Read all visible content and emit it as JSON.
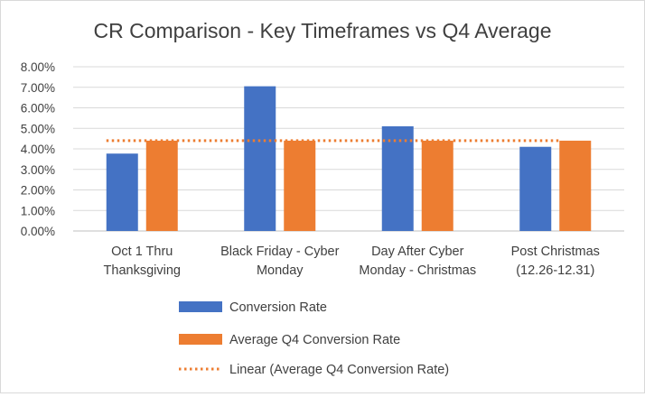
{
  "chart_data": {
    "type": "bar",
    "title": "CR Comparison -  Key Timeframes vs Q4 Average",
    "categories": [
      [
        "Oct 1 Thru",
        "Thanksgiving"
      ],
      [
        "Black Friday - Cyber",
        "Monday"
      ],
      [
        "Day After Cyber",
        "Monday - Christmas"
      ],
      [
        "Post Christmas",
        "(12.26-12.31)"
      ]
    ],
    "series": [
      {
        "name": "Conversion Rate",
        "values": [
          0.0377,
          0.0705,
          0.051,
          0.041
        ],
        "color": "#4472c4"
      },
      {
        "name": "Average Q4 Conversion Rate",
        "values": [
          0.044,
          0.044,
          0.044,
          0.044
        ],
        "color": "#ed7d31"
      }
    ],
    "trendline": {
      "name": "Linear (Average Q4 Conversion Rate)",
      "value": 0.044,
      "color": "#ed7d31",
      "style": "dotted"
    },
    "ylim": [
      0,
      0.08
    ],
    "yticks": [
      "0.00%",
      "1.00%",
      "2.00%",
      "3.00%",
      "4.00%",
      "5.00%",
      "6.00%",
      "7.00%",
      "8.00%"
    ],
    "grid": true,
    "legend_position": "bottom",
    "xlabel": "",
    "ylabel": ""
  }
}
